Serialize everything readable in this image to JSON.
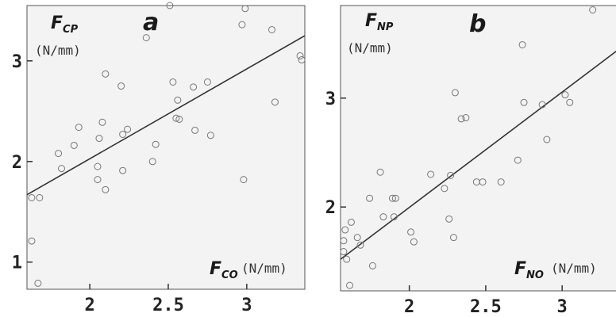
{
  "chart_data": [
    {
      "type": "scatter",
      "panel_label": "a",
      "ylabel": {
        "symbol": "F",
        "subscript": "CP",
        "unit": "(N/mm)"
      },
      "xlabel": {
        "symbol": "F",
        "subscript": "CO",
        "unit": "(N/mm)"
      },
      "xlim": [
        1.6,
        3.37
      ],
      "ylim": [
        0.73,
        3.55
      ],
      "xticks": [
        {
          "v": 2,
          "label": "2"
        },
        {
          "v": 2.5,
          "label": "2.5"
        },
        {
          "v": 3,
          "label": "3"
        }
      ],
      "yticks": [
        {
          "v": 1,
          "label": "1"
        },
        {
          "v": 2,
          "label": "2"
        },
        {
          "v": 3,
          "label": "3"
        }
      ],
      "grid": false,
      "fit_line": [
        [
          1.6,
          1.67
        ],
        [
          3.37,
          3.25
        ]
      ],
      "points": [
        [
          1.63,
          1.64
        ],
        [
          1.63,
          1.21
        ],
        [
          1.67,
          0.79
        ],
        [
          1.68,
          1.64
        ],
        [
          1.8,
          2.08
        ],
        [
          1.82,
          1.93
        ],
        [
          1.9,
          2.16
        ],
        [
          1.93,
          2.34
        ],
        [
          2.05,
          1.95
        ],
        [
          2.05,
          1.82
        ],
        [
          2.06,
          2.23
        ],
        [
          2.08,
          2.39
        ],
        [
          2.1,
          1.72
        ],
        [
          2.1,
          2.87
        ],
        [
          2.2,
          2.75
        ],
        [
          2.21,
          2.27
        ],
        [
          2.21,
          1.91
        ],
        [
          2.24,
          2.32
        ],
        [
          2.36,
          3.23
        ],
        [
          2.4,
          2.0
        ],
        [
          2.42,
          2.17
        ],
        [
          2.51,
          3.55
        ],
        [
          2.53,
          2.79
        ],
        [
          2.55,
          2.43
        ],
        [
          2.56,
          2.61
        ],
        [
          2.57,
          2.42
        ],
        [
          2.66,
          2.74
        ],
        [
          2.67,
          2.31
        ],
        [
          2.75,
          2.79
        ],
        [
          2.77,
          2.26
        ],
        [
          2.97,
          3.36
        ],
        [
          2.98,
          1.82
        ],
        [
          2.99,
          3.52
        ],
        [
          3.16,
          3.31
        ],
        [
          3.18,
          2.59
        ],
        [
          3.34,
          3.05
        ],
        [
          3.35,
          3.01
        ]
      ]
    },
    {
      "type": "scatter",
      "panel_label": "b",
      "ylabel": {
        "symbol": "F",
        "subscript": "NP",
        "unit": "(N/mm)"
      },
      "xlabel": {
        "symbol": "F",
        "subscript": "NO",
        "unit": "(N/mm)"
      },
      "xlim": [
        1.55,
        3.42
      ],
      "ylim": [
        1.23,
        3.85
      ],
      "xticks": [
        {
          "v": 2,
          "label": "2"
        },
        {
          "v": 2.5,
          "label": "2.5"
        },
        {
          "v": 3,
          "label": "3"
        }
      ],
      "yticks": [
        {
          "v": 2,
          "label": "2"
        },
        {
          "v": 3,
          "label": "3"
        }
      ],
      "grid": false,
      "fit_line": [
        [
          1.55,
          1.52
        ],
        [
          3.42,
          3.5
        ]
      ],
      "points": [
        [
          1.57,
          1.69
        ],
        [
          1.57,
          1.59
        ],
        [
          1.58,
          1.79
        ],
        [
          1.59,
          1.52
        ],
        [
          1.61,
          1.28
        ],
        [
          1.62,
          1.86
        ],
        [
          1.66,
          1.72
        ],
        [
          1.68,
          1.65
        ],
        [
          1.74,
          2.08
        ],
        [
          1.76,
          1.46
        ],
        [
          1.81,
          2.32
        ],
        [
          1.83,
          1.91
        ],
        [
          1.89,
          2.08
        ],
        [
          1.9,
          1.91
        ],
        [
          1.91,
          2.08
        ],
        [
          2.01,
          1.77
        ],
        [
          2.03,
          1.68
        ],
        [
          2.14,
          2.3
        ],
        [
          2.23,
          2.17
        ],
        [
          2.26,
          1.89
        ],
        [
          2.27,
          2.29
        ],
        [
          2.29,
          1.72
        ],
        [
          2.3,
          3.05
        ],
        [
          2.34,
          2.81
        ],
        [
          2.37,
          2.82
        ],
        [
          2.44,
          2.23
        ],
        [
          2.48,
          2.23
        ],
        [
          2.6,
          2.23
        ],
        [
          2.71,
          2.43
        ],
        [
          2.74,
          3.49
        ],
        [
          2.75,
          2.96
        ],
        [
          2.87,
          2.94
        ],
        [
          2.9,
          2.62
        ],
        [
          3.02,
          3.03
        ],
        [
          3.05,
          2.96
        ],
        [
          3.2,
          3.81
        ],
        [
          3.38,
          3.25
        ]
      ]
    }
  ]
}
